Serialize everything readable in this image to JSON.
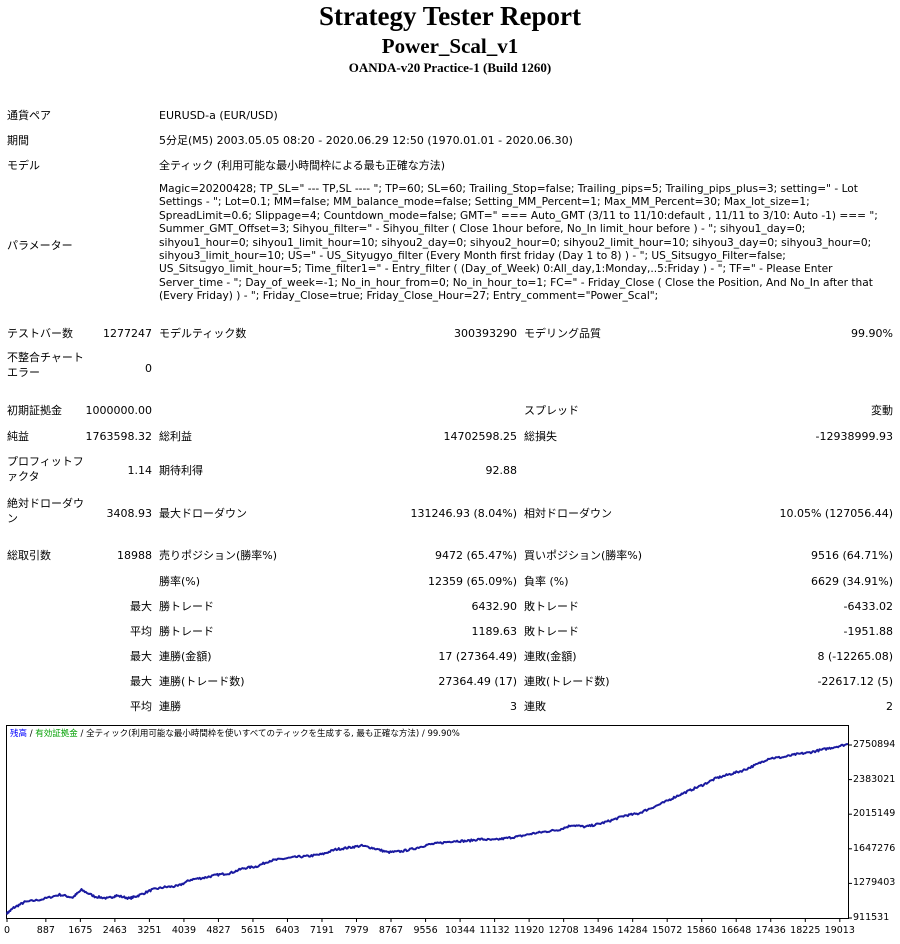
{
  "header": {
    "title": "Strategy Tester Report",
    "ea_name": "Power_Scal_v1",
    "account": "OANDA-v20 Practice-1 (Build 1260)"
  },
  "info": {
    "symbol_label": "通貨ペア",
    "symbol_value": "EURUSD-a (EUR/USD)",
    "period_label": "期間",
    "period_value": "5分足(M5) 2003.05.05 08:20 - 2020.06.29 12:50 (1970.01.01 - 2020.06.30)",
    "model_label": "モデル",
    "model_value": "全ティック (利用可能な最小時間枠による最も正確な方法)",
    "params_label": "パラメーター",
    "params_value": "Magic=20200428; TP_SL=\" --- TP,SL ---- \"; TP=60; SL=60; Trailing_Stop=false; Trailing_pips=5; Trailing_pips_plus=3; setting=\" - Lot Settings - \"; Lot=0.1; MM=false; MM_balance_mode=false; Setting_MM_Percent=1; Max_MM_Percent=30; Max_lot_size=1; SpreadLimit=0.6; Slippage=4; Countdown_mode=false; GMT=\" === Auto_GMT (3/11 to 11/10:default , 11/11 to 3/10: Auto -1) === \"; Summer_GMT_Offset=3; Sihyou_filter=\" - Sihyou_filter ( Close 1hour before, No_In limit_hour before ) - \"; sihyou1_day=0; sihyou1_hour=0; sihyou1_limit_hour=10; sihyou2_day=0; sihyou2_hour=0; sihyou2_limit_hour=10; sihyou3_day=0; sihyou3_hour=0; sihyou3_limit_hour=10; US=\" - US_Sityugyo_filter (Every Month first friday (Day 1 to 8) ) - \"; US_Sitsugyo_Filter=false; US_Sitsugyo_limit_hour=5; Time_filter1=\" - Entry_filter ( (Day_of_Week) 0:All_day,1:Monday,..5:Friday ) - \"; TF=\" - Please Enter Server_time - \"; Day_of_week=-1; No_in_hour_from=0; No_in_hour_to=1; FC=\" - Friday_Close ( Close the Position, And No_In after that (Every Friday) ) - \"; Friday_Close=true; Friday_Close_Hour=27; Entry_comment=\"Power_Scal\";"
  },
  "stats": {
    "bars_label": "テストバー数",
    "bars_value": "1277247",
    "ticks_label": "モデルティック数",
    "ticks_value": "300393290",
    "quality_label": "モデリング品質",
    "quality_value": "99.90%",
    "mismatch_label": "不整合チャートエラー",
    "mismatch_value": "0",
    "deposit_label": "初期証拠金",
    "deposit_value": "1000000.00",
    "spread_label": "スプレッド",
    "spread_value": "変動",
    "net_label": "純益",
    "net_value": "1763598.32",
    "gross_profit_label": "総利益",
    "gross_profit_value": "14702598.25",
    "gross_loss_label": "総損失",
    "gross_loss_value": "-12938999.93",
    "pf_label": "プロフィットファクタ",
    "pf_value": "1.14",
    "expected_label": "期待利得",
    "expected_value": "92.88",
    "abs_dd_label": "絶対ドローダウン",
    "abs_dd_value": "3408.93",
    "max_dd_label": "最大ドローダウン",
    "max_dd_value": "131246.93 (8.04%)",
    "rel_dd_label": "相対ドローダウン",
    "rel_dd_value": "10.05% (127056.44)",
    "total_trades_label": "総取引数",
    "total_trades_value": "18988",
    "short_label": "売りポジション(勝率%)",
    "short_value": "9472 (65.47%)",
    "long_label": "買いポジション(勝率%)",
    "long_value": "9516 (64.71%)",
    "win_rate_label": "勝率(%)",
    "win_rate_value": "12359 (65.09%)",
    "loss_rate_label": "負率 (%)",
    "loss_rate_value": "6629 (34.91%)",
    "max_label": "最大",
    "avg_label": "平均",
    "largest_win_label": "勝トレード",
    "largest_win_value": "6432.90",
    "largest_loss_label": "敗トレード",
    "largest_loss_value": "-6433.02",
    "avg_win_label": "勝トレード",
    "avg_win_value": "1189.63",
    "avg_loss_label": "敗トレード",
    "avg_loss_value": "-1951.88",
    "max_cons_win_money_label": "連勝(金額)",
    "max_cons_win_money_value": "17 (27364.49)",
    "max_cons_loss_money_label": "連敗(金額)",
    "max_cons_loss_money_value": "8 (-12265.08)",
    "max_cons_win_count_label": "連勝(トレード数)",
    "max_cons_win_count_value": "27364.49 (17)",
    "max_cons_loss_count_label": "連敗(トレード数)",
    "max_cons_loss_count_value": "-22617.12 (5)",
    "avg_cons_win_label": "連勝",
    "avg_cons_win_value": "3",
    "avg_cons_loss_label": "連敗",
    "avg_cons_loss_value": "2"
  },
  "colors": {
    "line": "#1a1aa0",
    "legend_balance": "#0000ff",
    "legend_equity": "#00a000"
  },
  "chart_data": {
    "type": "line",
    "legend": {
      "balance": "残高",
      "sep1": " / ",
      "equity": "有効証拠金",
      "sep2": " / ",
      "model": "全ティック(利用可能な最小時間枠を使いすべてのティックを生成する, 最も正確な方法)",
      "sep3": " / ",
      "quality": "99.90%"
    },
    "y_ticks": [
      "2750894",
      "2383021",
      "2015149",
      "1647276",
      "1279403",
      "911531"
    ],
    "y_tick_values": [
      2750894,
      2383021,
      2015149,
      1647276,
      1279403,
      911531
    ],
    "x_ticks": [
      "0",
      "887",
      "1675",
      "2463",
      "3251",
      "4039",
      "4827",
      "5615",
      "6403",
      "7191",
      "7979",
      "8767",
      "9556",
      "10344",
      "11132",
      "11920",
      "12708",
      "13496",
      "14284",
      "15072",
      "15860",
      "16648",
      "17436",
      "18225",
      "19013"
    ],
    "x_tick_values": [
      0,
      887,
      1675,
      2463,
      3251,
      4039,
      4827,
      5615,
      6403,
      7191,
      7979,
      8767,
      9556,
      10344,
      11132,
      11920,
      12708,
      13496,
      14284,
      15072,
      15860,
      16648,
      17436,
      18225,
      19013
    ],
    "series": [
      {
        "values_x": [
          0,
          150,
          400,
          800,
          1200,
          1500,
          1700,
          2000,
          2300,
          2500,
          2800,
          3000,
          3300,
          3600,
          3900,
          4200,
          4500,
          4800,
          5100,
          5400,
          5700,
          6000,
          6300,
          6600,
          6900,
          7200,
          7500,
          7800,
          8100,
          8400,
          8700,
          9000,
          9300,
          9600,
          9900,
          10200,
          10500,
          10800,
          11100,
          11400,
          11700,
          12000,
          12300,
          12600,
          12900,
          13200,
          13500,
          13800,
          14100,
          14400,
          14700,
          15000,
          15300,
          15600,
          15900,
          16200,
          16500,
          16800,
          17100,
          17400,
          17700,
          18000,
          18300,
          18600,
          18900,
          19200
        ],
        "values_y": [
          960000,
          1020000,
          1080000,
          1110000,
          1160000,
          1130000,
          1210000,
          1140000,
          1120000,
          1150000,
          1120000,
          1150000,
          1210000,
          1240000,
          1250000,
          1320000,
          1340000,
          1370000,
          1390000,
          1440000,
          1460000,
          1520000,
          1540000,
          1560000,
          1570000,
          1590000,
          1640000,
          1660000,
          1680000,
          1650000,
          1610000,
          1620000,
          1650000,
          1690000,
          1710000,
          1730000,
          1730000,
          1750000,
          1740000,
          1760000,
          1780000,
          1810000,
          1830000,
          1850000,
          1900000,
          1880000,
          1910000,
          1950000,
          2000000,
          2020000,
          2080000,
          2140000,
          2210000,
          2270000,
          2330000,
          2400000,
          2440000,
          2480000,
          2540000,
          2610000,
          2620000,
          2650000,
          2670000,
          2700000,
          2730000,
          2760000
        ]
      }
    ]
  }
}
